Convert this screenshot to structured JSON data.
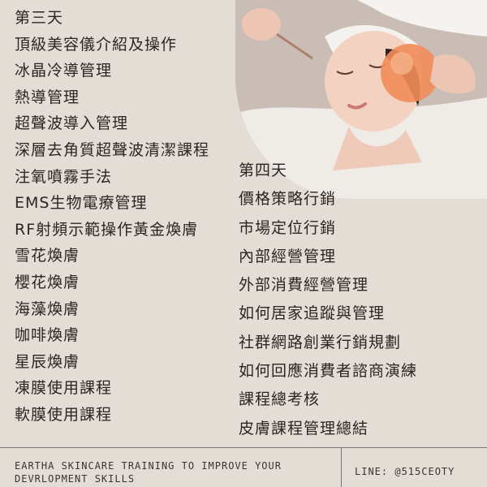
{
  "day3": {
    "heading": "第三天",
    "items": [
      "頂級美容儀介紹及操作",
      "冰晶冷導管理",
      "熱導管理",
      "超聲波導入管理",
      "深層去角質超聲波清潔課程",
      "注氧噴霧手法",
      "EMS生物電療管理",
      "RF射頻示範操作黃金煥膚",
      "雪花煥膚",
      "櫻花煥膚",
      "海藻煥膚",
      "咖啡煥膚",
      "星辰煥膚",
      "凍膜使用課程",
      "軟膜使用課程"
    ]
  },
  "day4": {
    "heading": "第四天",
    "items": [
      "價格策略行銷",
      "市場定位行銷",
      "內部經營管理",
      "外部消費經營管理",
      "如何居家追蹤與管理",
      "社群網路創業行銷規劃",
      "如何回應消費者諮商演練",
      "課程總考核",
      "皮膚課程管理總結"
    ]
  },
  "footer": {
    "tagline_line1": "EARTHA SKINCARE TRAINING TO IMPROVE YOUR",
    "tagline_line2": "DEVRLOPMENT SKILLS",
    "contact": "LINE: @515CEOTY"
  }
}
